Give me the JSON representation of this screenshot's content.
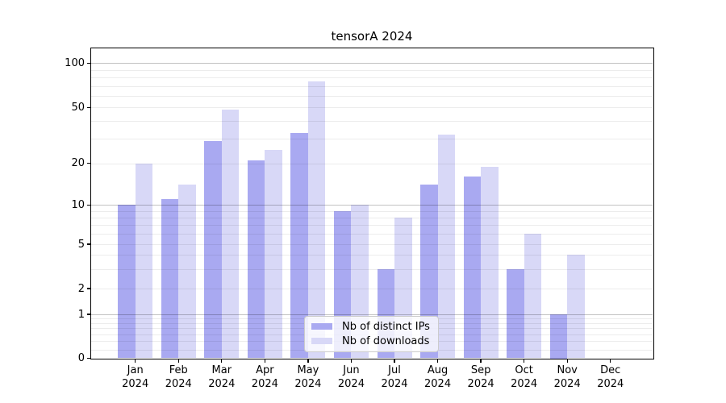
{
  "title": "tensorA 2024",
  "legend": {
    "items": [
      {
        "label": "Nb of distinct IPs",
        "color": "#a9a9f1"
      },
      {
        "label": "Nb of downloads",
        "color": "#d8d8f7"
      }
    ]
  },
  "chart_data": {
    "type": "bar",
    "title": "tensorA 2024",
    "categories": [
      "Jan 2024",
      "Feb 2024",
      "Mar 2024",
      "Apr 2024",
      "May 2024",
      "Jun 2024",
      "Jul 2024",
      "Aug 2024",
      "Sep 2024",
      "Oct 2024",
      "Nov 2024",
      "Dec 2024"
    ],
    "series": [
      {
        "name": "Nb of distinct IPs",
        "color": "#a9a9f1",
        "values": [
          10,
          11,
          29,
          21,
          33,
          9,
          3,
          14,
          16,
          3,
          1,
          0
        ]
      },
      {
        "name": "Nb of downloads",
        "color": "#d8d8f7",
        "values": [
          20,
          14,
          48,
          25,
          75,
          10,
          8,
          32,
          19,
          6,
          4,
          0
        ]
      }
    ],
    "yscale": "log-like (0,1,2,5,10,20,50,100 ticks)",
    "y_tick_values": [
      0,
      1,
      2,
      5,
      10,
      20,
      50,
      100
    ],
    "y_tick_labels": [
      "0",
      "1",
      "2",
      "5",
      "10",
      "20",
      "50",
      "100"
    ],
    "ylim": [
      0,
      140
    ],
    "grid": "major 1/10/100 darker, log minors lighter, drawn over bars",
    "legend_position": "lower center",
    "background": "#ffffff"
  }
}
